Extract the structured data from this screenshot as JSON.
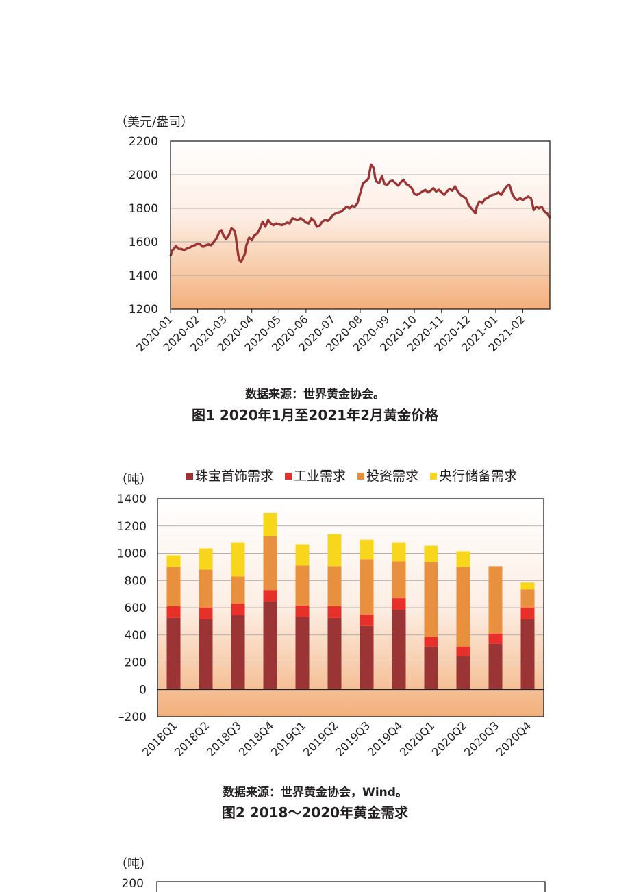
{
  "figure1": {
    "unit": "（美元/盎司）",
    "source": "数据来源：世界黄金协会。",
    "title": "图1  2020年1月至2021年2月黄金价格",
    "chart_data": {
      "type": "line",
      "ylim": [
        1200,
        2200
      ],
      "yticks": [
        1200,
        1400,
        1600,
        1800,
        2000,
        2200
      ],
      "xlim": [
        0,
        14
      ],
      "xtick_labels": [
        "2020-01",
        "2020-02",
        "2020-03",
        "2020-04",
        "2020-05",
        "2020-06",
        "2020-07",
        "2020-08",
        "2020-09",
        "2020-10",
        "2020-11",
        "2020-12",
        "2021-01",
        "2021-02"
      ],
      "grid": true,
      "series": [
        {
          "color": "#9b3434",
          "points": [
            [
              0.0,
              1515
            ],
            [
              0.07,
              1550
            ],
            [
              0.13,
              1560
            ],
            [
              0.2,
              1575
            ],
            [
              0.3,
              1558
            ],
            [
              0.4,
              1558
            ],
            [
              0.5,
              1550
            ],
            [
              0.6,
              1560
            ],
            [
              0.7,
              1565
            ],
            [
              0.8,
              1575
            ],
            [
              0.9,
              1580
            ],
            [
              1.0,
              1590
            ],
            [
              1.1,
              1585
            ],
            [
              1.2,
              1570
            ],
            [
              1.3,
              1580
            ],
            [
              1.4,
              1585
            ],
            [
              1.5,
              1580
            ],
            [
              1.6,
              1600
            ],
            [
              1.7,
              1620
            ],
            [
              1.8,
              1660
            ],
            [
              1.88,
              1670
            ],
            [
              1.95,
              1640
            ],
            [
              2.05,
              1615
            ],
            [
              2.15,
              1640
            ],
            [
              2.25,
              1680
            ],
            [
              2.35,
              1670
            ],
            [
              2.4,
              1640
            ],
            [
              2.45,
              1580
            ],
            [
              2.5,
              1520
            ],
            [
              2.55,
              1490
            ],
            [
              2.6,
              1480
            ],
            [
              2.65,
              1495
            ],
            [
              2.75,
              1530
            ],
            [
              2.8,
              1580
            ],
            [
              2.9,
              1625
            ],
            [
              3.0,
              1610
            ],
            [
              3.1,
              1640
            ],
            [
              3.2,
              1650
            ],
            [
              3.3,
              1680
            ],
            [
              3.4,
              1720
            ],
            [
              3.5,
              1690
            ],
            [
              3.6,
              1730
            ],
            [
              3.7,
              1710
            ],
            [
              3.8,
              1700
            ],
            [
              3.9,
              1710
            ],
            [
              4.0,
              1705
            ],
            [
              4.1,
              1700
            ],
            [
              4.2,
              1705
            ],
            [
              4.3,
              1715
            ],
            [
              4.4,
              1710
            ],
            [
              4.5,
              1740
            ],
            [
              4.6,
              1735
            ],
            [
              4.7,
              1730
            ],
            [
              4.8,
              1740
            ],
            [
              4.9,
              1730
            ],
            [
              5.0,
              1715
            ],
            [
              5.1,
              1710
            ],
            [
              5.2,
              1740
            ],
            [
              5.3,
              1725
            ],
            [
              5.4,
              1690
            ],
            [
              5.5,
              1695
            ],
            [
              5.6,
              1720
            ],
            [
              5.7,
              1730
            ],
            [
              5.8,
              1725
            ],
            [
              5.9,
              1740
            ],
            [
              6.0,
              1760
            ],
            [
              6.1,
              1770
            ],
            [
              6.2,
              1775
            ],
            [
              6.3,
              1780
            ],
            [
              6.4,
              1795
            ],
            [
              6.5,
              1810
            ],
            [
              6.6,
              1800
            ],
            [
              6.7,
              1815
            ],
            [
              6.8,
              1810
            ],
            [
              6.9,
              1830
            ],
            [
              7.0,
              1890
            ],
            [
              7.1,
              1950
            ],
            [
              7.2,
              1960
            ],
            [
              7.3,
              1975
            ],
            [
              7.35,
              2020
            ],
            [
              7.4,
              2060
            ],
            [
              7.45,
              2050
            ],
            [
              7.5,
              2040
            ],
            [
              7.55,
              1980
            ],
            [
              7.6,
              1960
            ],
            [
              7.7,
              1950
            ],
            [
              7.8,
              1990
            ],
            [
              7.9,
              1945
            ],
            [
              8.0,
              1940
            ],
            [
              8.1,
              1960
            ],
            [
              8.2,
              1965
            ],
            [
              8.3,
              1950
            ],
            [
              8.4,
              1935
            ],
            [
              8.5,
              1955
            ],
            [
              8.6,
              1970
            ],
            [
              8.7,
              1945
            ],
            [
              8.8,
              1935
            ],
            [
              8.9,
              1920
            ],
            [
              9.0,
              1885
            ],
            [
              9.1,
              1880
            ],
            [
              9.2,
              1890
            ],
            [
              9.3,
              1900
            ],
            [
              9.4,
              1910
            ],
            [
              9.5,
              1895
            ],
            [
              9.6,
              1905
            ],
            [
              9.7,
              1920
            ],
            [
              9.8,
              1900
            ],
            [
              9.9,
              1910
            ],
            [
              10.0,
              1895
            ],
            [
              10.1,
              1880
            ],
            [
              10.2,
              1900
            ],
            [
              10.3,
              1915
            ],
            [
              10.4,
              1905
            ],
            [
              10.5,
              1930
            ],
            [
              10.6,
              1900
            ],
            [
              10.7,
              1880
            ],
            [
              10.8,
              1870
            ],
            [
              10.9,
              1860
            ],
            [
              11.0,
              1820
            ],
            [
              11.1,
              1800
            ],
            [
              11.2,
              1780
            ],
            [
              11.25,
              1770
            ],
            [
              11.3,
              1810
            ],
            [
              11.4,
              1840
            ],
            [
              11.5,
              1830
            ],
            [
              11.6,
              1855
            ],
            [
              11.7,
              1860
            ],
            [
              11.8,
              1875
            ],
            [
              11.9,
              1880
            ],
            [
              12.0,
              1885
            ],
            [
              12.1,
              1895
            ],
            [
              12.2,
              1880
            ],
            [
              12.3,
              1905
            ],
            [
              12.4,
              1930
            ],
            [
              12.5,
              1940
            ],
            [
              12.55,
              1920
            ],
            [
              12.6,
              1890
            ],
            [
              12.7,
              1860
            ],
            [
              12.8,
              1850
            ],
            [
              12.9,
              1860
            ],
            [
              13.0,
              1850
            ],
            [
              13.1,
              1860
            ],
            [
              13.2,
              1870
            ],
            [
              13.3,
              1860
            ],
            [
              13.35,
              1830
            ],
            [
              13.4,
              1790
            ],
            [
              13.5,
              1810
            ],
            [
              13.6,
              1800
            ],
            [
              13.7,
              1810
            ],
            [
              13.8,
              1780
            ],
            [
              13.9,
              1770
            ],
            [
              14.0,
              1740
            ]
          ]
        }
      ]
    }
  },
  "figure2": {
    "unit": "（吨）",
    "source": "数据来源：世界黄金协会，Wind。",
    "title": "图2  2018～2020年黄金需求",
    "chart_data": {
      "type": "bar",
      "stacked": true,
      "ylim": [
        -200,
        1400
      ],
      "yticks": [
        -200,
        0,
        200,
        400,
        600,
        800,
        1000,
        1200,
        1400
      ],
      "legend_position": "top",
      "categories": [
        "2018Q1",
        "2018Q2",
        "2018Q3",
        "2018Q4",
        "2019Q1",
        "2019Q2",
        "2019Q3",
        "2019Q4",
        "2020Q1",
        "2020Q2",
        "2020Q3",
        "2020Q4"
      ],
      "series": [
        {
          "name": "珠宝首饰需求",
          "color": "#9b3434",
          "values": [
            525,
            515,
            545,
            645,
            530,
            525,
            465,
            585,
            315,
            245,
            335,
            515
          ]
        },
        {
          "name": "工业需求",
          "color": "#e8302a",
          "values": [
            85,
            85,
            85,
            85,
            85,
            85,
            85,
            85,
            70,
            70,
            75,
            85
          ]
        },
        {
          "name": "投资需求",
          "color": "#e9903f",
          "values": [
            290,
            280,
            200,
            395,
            295,
            295,
            405,
            270,
            550,
            585,
            495,
            135
          ]
        },
        {
          "name": "央行储备需求",
          "color": "#f8d61c",
          "values": [
            85,
            155,
            250,
            170,
            155,
            235,
            145,
            140,
            120,
            115,
            0,
            50
          ]
        }
      ]
    }
  },
  "figure3": {
    "unit": "（吨）",
    "yticks_visible": [
      200
    ]
  }
}
